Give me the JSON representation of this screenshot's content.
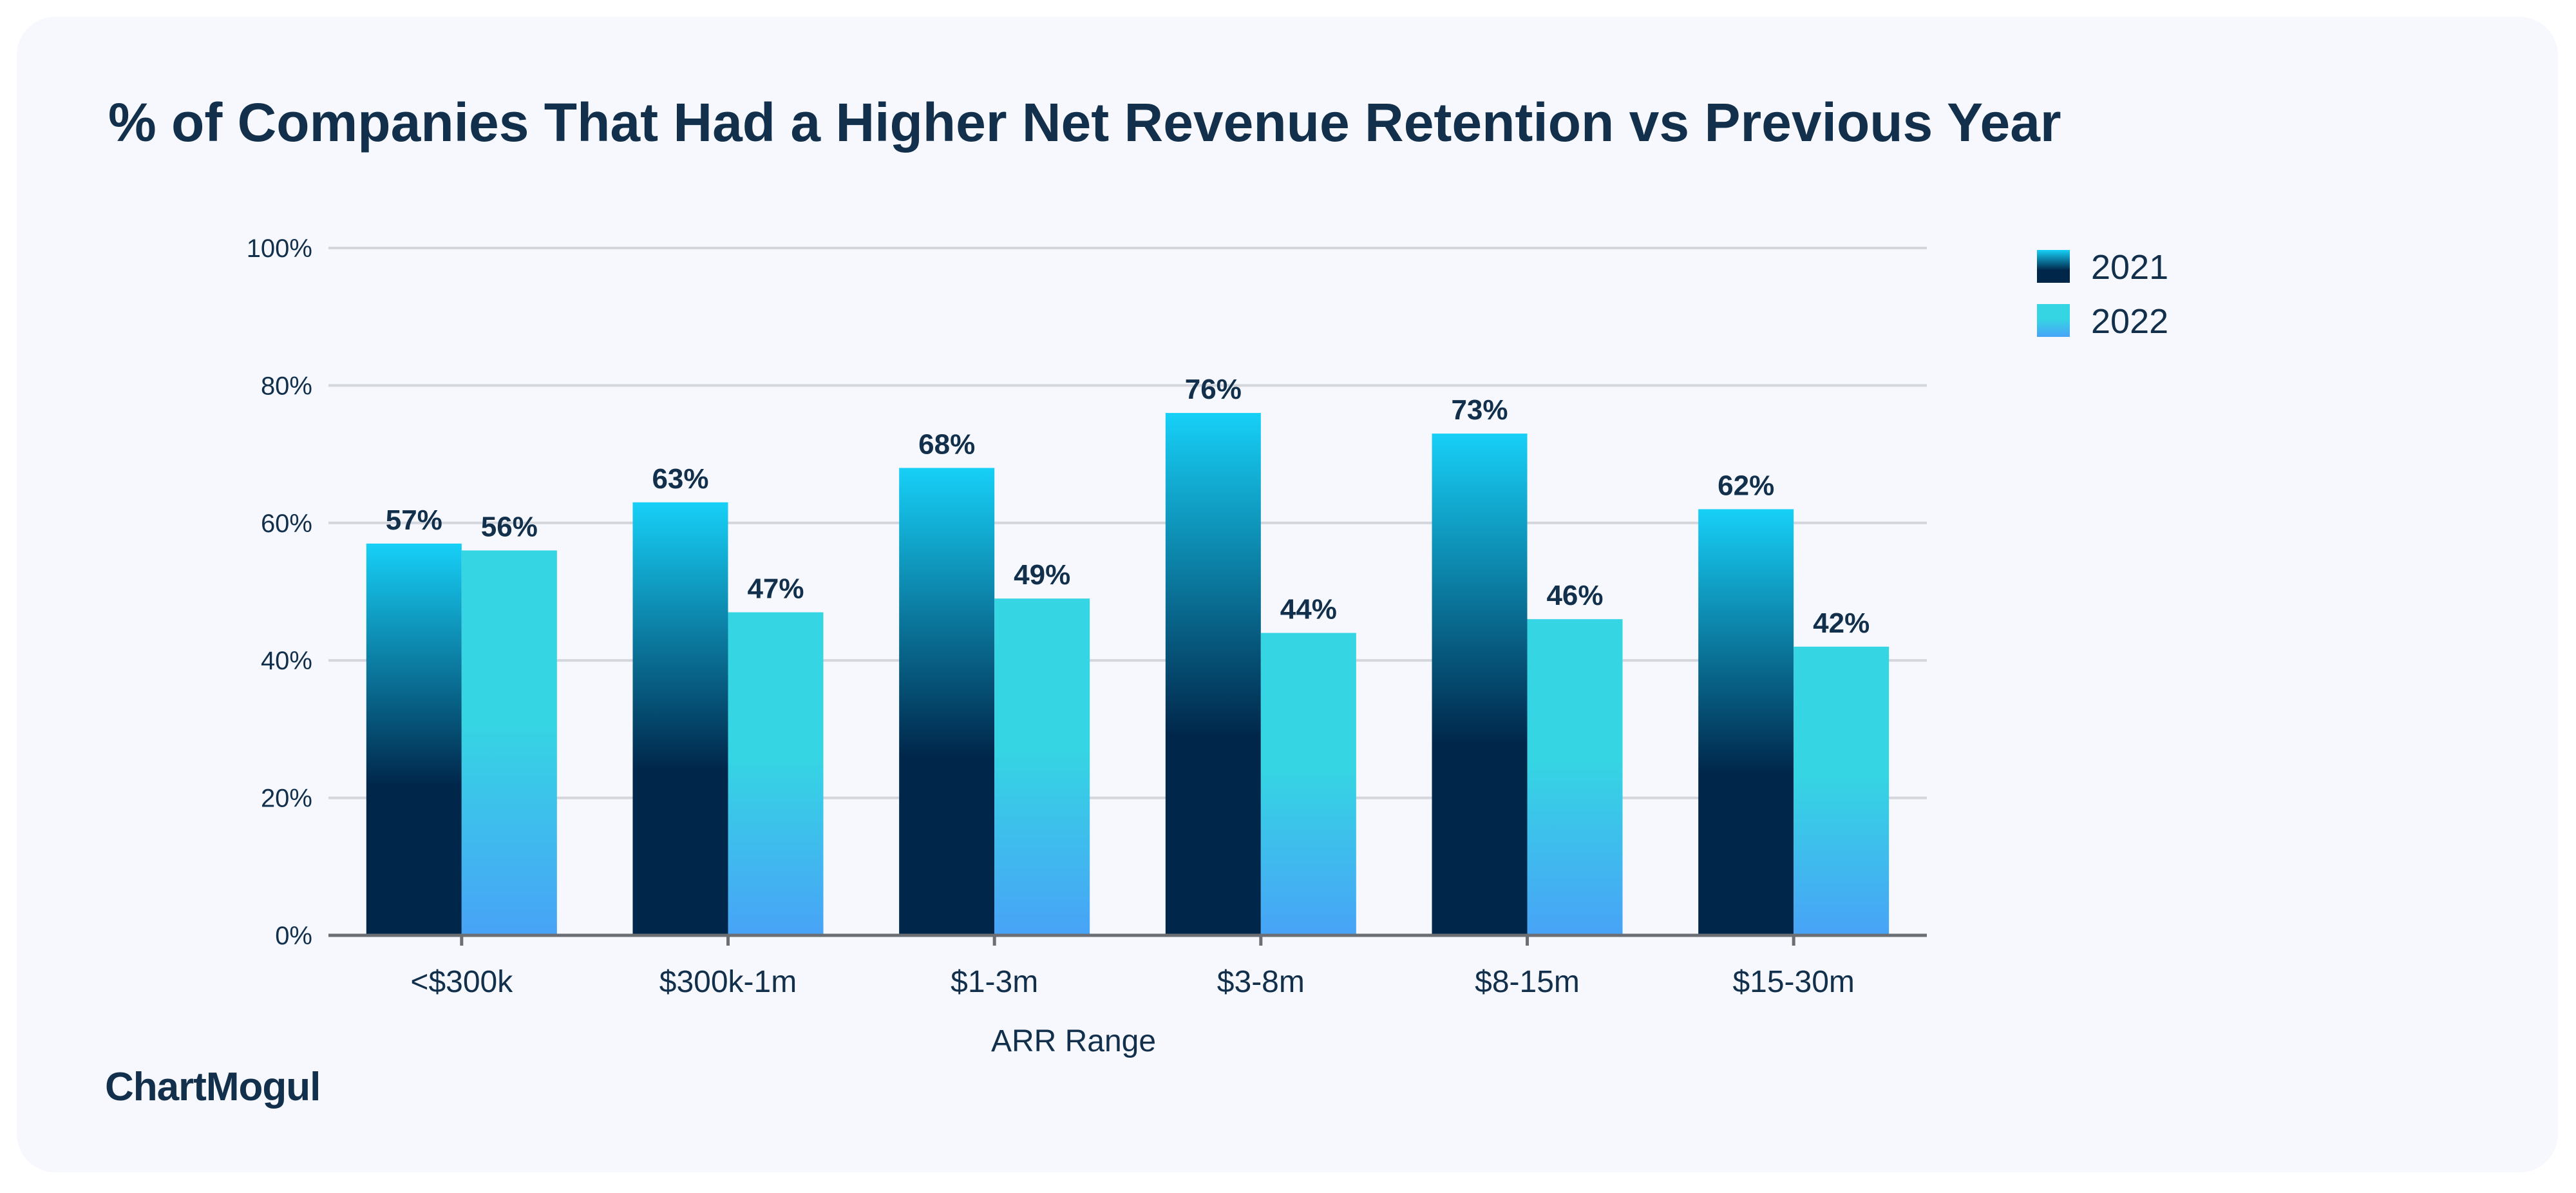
{
  "brand": "ChartMogul",
  "colors": {
    "series_2021_top": "#17d0f7",
    "series_2021_bottom": "#00264a",
    "series_2022_top": "#35d5e3",
    "series_2022_bottom": "#48a3f7",
    "text": "#12304b",
    "background": "#f6f8fd"
  },
  "chart_data": {
    "type": "bar",
    "title": "% of Companies That Had a Higher Net Revenue Retention vs Previous Year",
    "xlabel": "ARR Range",
    "ylabel": "",
    "categories": [
      "<$300k",
      "$300k-1m",
      "$1-3m",
      "$3-8m",
      "$8-15m",
      "$15-30m"
    ],
    "series": [
      {
        "name": "2021",
        "values": [
          57,
          63,
          68,
          76,
          73,
          62
        ]
      },
      {
        "name": "2022",
        "values": [
          56,
          47,
          49,
          44,
          46,
          42
        ]
      }
    ],
    "ylim": [
      0,
      100
    ],
    "yticks": [
      "0%",
      "20%",
      "40%",
      "60%",
      "80%",
      "100%"
    ],
    "ytick_values": [
      0,
      20,
      40,
      60,
      80,
      100
    ],
    "value_suffix": "%",
    "grid": true,
    "legend": "top-right"
  }
}
